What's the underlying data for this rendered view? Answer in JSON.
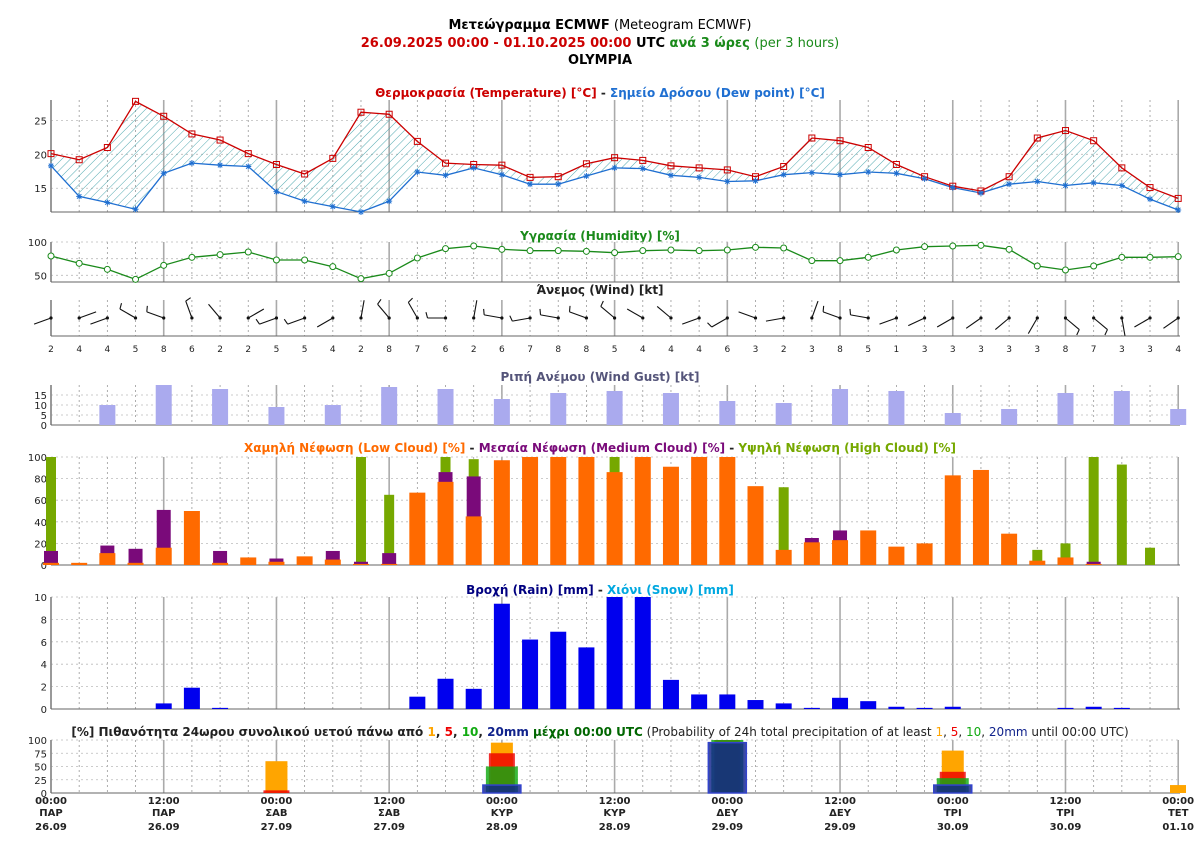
{
  "header": {
    "title_gr": "Μετεώγραμμα ECMWF",
    "title_en": "(Meteogram ECMWF)",
    "period": "26.09.2025 00:00 - 01.10.2025 00:00",
    "utc": "UTC",
    "step_gr": "ανά 3 ώρες",
    "step_en": "(per 3 hours)",
    "location": "OLYMPIA"
  },
  "colors": {
    "temperature": "#cc0000",
    "dewpoint": "#1f6fd1",
    "humidity": "#1a8a1a",
    "gust": "#aaaaee",
    "low_cloud": "#ff6a00",
    "medium_cloud": "#7a0a7a",
    "high_cloud": "#76a800",
    "rain": "#0000ee",
    "snow": "#00a8e0",
    "prob1": "#ffa500",
    "prob5": "#ee0000",
    "prob10": "#11aa11",
    "prob20": "#11238c"
  },
  "chart_data": [
    {
      "type": "line",
      "title": "Θερμοκρασία (Temperature) [°C] - Σημείο Δρόσου (Dew point) [°C]",
      "title_parts": [
        "Θερμοκρασία (Temperature) [°C]",
        " - ",
        "Σημείο Δρόσου (Dew point) [°C]"
      ],
      "y_ticks": [
        "15",
        "20",
        "25"
      ],
      "ylim": [
        11.5,
        28
      ],
      "grid": true,
      "series": [
        {
          "name": "Θερμοκρασία (Temperature) [°C]",
          "values": [
            20.1,
            19.2,
            21,
            27.8,
            25.6,
            23,
            22.1,
            20.1,
            18.5,
            17.1,
            19.4,
            26.2,
            25.9,
            21.9,
            18.7,
            18.5,
            18.4,
            16.6,
            16.7,
            18.6,
            19.5,
            19.1,
            18.3,
            18,
            17.7,
            16.7,
            18.2,
            22.4,
            22,
            21,
            18.5,
            16.7,
            15.3,
            14.6,
            16.7,
            22.4,
            23.5,
            22,
            18,
            15.1,
            13.5
          ]
        },
        {
          "name": "Σημείο Δρόσου (Dew point) [°C]",
          "values": [
            18.3,
            13.8,
            12.9,
            11.9,
            17.2,
            18.7,
            18.4,
            18.2,
            14.5,
            13.1,
            12.3,
            11.5,
            13.1,
            17.4,
            16.9,
            18,
            17,
            15.6,
            15.6,
            16.8,
            18,
            17.9,
            16.9,
            16.6,
            16,
            16.1,
            17,
            17.3,
            17,
            17.4,
            17.2,
            16.4,
            15.1,
            14.3,
            15.6,
            16,
            15.4,
            15.8,
            15.4,
            13.4,
            11.8
          ]
        }
      ]
    },
    {
      "type": "line",
      "title": "Υγρασία (Humidity) [%]",
      "y_ticks": [
        "50",
        "100"
      ],
      "ylim": [
        40,
        100
      ],
      "grid": true,
      "series": [
        {
          "name": "Υγρασία (Humidity) [%]",
          "values": [
            79,
            68,
            59,
            44,
            65,
            77,
            81,
            85,
            73,
            73,
            63,
            45,
            53,
            76,
            90,
            94,
            89,
            87,
            87,
            86,
            84,
            87,
            88,
            87,
            88,
            92,
            91,
            72,
            72,
            77,
            88,
            93,
            94,
            95,
            89,
            64,
            58,
            64,
            77,
            77,
            78
          ]
        }
      ]
    },
    {
      "type": "wind",
      "title": "Άνεμος (Wind) [kt]",
      "speeds": [
        "2",
        "4",
        "4",
        "5",
        "8",
        "6",
        "2",
        "2",
        "5",
        "5",
        "4",
        "2",
        "8",
        "7",
        "6",
        "2",
        "6",
        "7",
        "8",
        "8",
        "5",
        "4",
        "4",
        "4",
        "6",
        "3",
        "2",
        "3",
        "8",
        "5",
        "1",
        "3",
        "3",
        "3",
        "3",
        "3",
        "8",
        "7",
        "3",
        "3",
        "4"
      ],
      "directions_deg": [
        250,
        70,
        250,
        300,
        290,
        340,
        320,
        60,
        250,
        250,
        240,
        10,
        320,
        330,
        270,
        10,
        280,
        260,
        280,
        290,
        310,
        300,
        310,
        250,
        240,
        290,
        260,
        20,
        290,
        280,
        250,
        245,
        240,
        235,
        230,
        210,
        130,
        130,
        170,
        240,
        235
      ]
    },
    {
      "type": "bar",
      "title": "Ριπή Ανέμου (Wind Gust) [kt]",
      "y_ticks": [
        "0",
        "5",
        "10",
        "15"
      ],
      "ylim": [
        0,
        20
      ],
      "grid": true,
      "values": [
        10,
        20,
        18,
        9,
        10,
        19,
        18,
        13,
        16,
        17,
        16,
        12,
        11,
        18,
        17,
        6,
        8,
        16,
        17,
        8
      ]
    },
    {
      "type": "bar",
      "title": "Χαμηλή Νέφωση (Low Cloud) [%] - Μεσαία Νέφωση (Medium Cloud) [%] - Υψηλή Νέφωση (High Cloud) [%]",
      "title_parts": [
        "Χαμηλή Νέφωση (Low Cloud) [%]",
        " - ",
        "Μεσαία Νέφωση (Medium Cloud) [%]",
        " - ",
        "Υψηλή Νέφωση (High Cloud) [%]"
      ],
      "y_ticks": [
        "0",
        "20",
        "40",
        "60",
        "80",
        "100"
      ],
      "ylim": [
        0,
        100
      ],
      "grid": true,
      "series": [
        {
          "name": "Χαμηλή Νέφωση (Low Cloud) [%]",
          "values": [
            2,
            2,
            11,
            2,
            16,
            50,
            2,
            7,
            3,
            8,
            5,
            1,
            1,
            67,
            77,
            45,
            97,
            100,
            100,
            100,
            86,
            100,
            91,
            100,
            100,
            73,
            14,
            21,
            23,
            32,
            17,
            20,
            83,
            88,
            29,
            4,
            7,
            1,
            0,
            0,
            0
          ]
        },
        {
          "name": "Μεσαία Νέφωση (Medium Cloud) [%]",
          "values": [
            13,
            0,
            18,
            15,
            51,
            0,
            13,
            0,
            6,
            0,
            13,
            3,
            11,
            0,
            86,
            82,
            0,
            0,
            0,
            0,
            0,
            0,
            0,
            0,
            0,
            0,
            0,
            25,
            32,
            0,
            0,
            0,
            0,
            0,
            0,
            0,
            0,
            3,
            0,
            0,
            0
          ]
        },
        {
          "name": "Υψηλή Νέφωση (High Cloud) [%]",
          "values": [
            100,
            0,
            0,
            0,
            0,
            0,
            0,
            0,
            0,
            0,
            0,
            100,
            65,
            0,
            100,
            98,
            0,
            0,
            0,
            0,
            100,
            0,
            0,
            0,
            0,
            0,
            72,
            0,
            0,
            0,
            0,
            0,
            0,
            0,
            0,
            14,
            20,
            100,
            93,
            16,
            0
          ]
        }
      ]
    },
    {
      "type": "bar",
      "title": "Βροχή (Rain) [mm] - Χιόνι (Snow) [mm]",
      "title_parts": [
        "Βροχή (Rain) [mm]",
        " - ",
        "Χιόνι (Snow) [mm]"
      ],
      "y_ticks": [
        "0",
        "2",
        "4",
        "6",
        "8",
        "10"
      ],
      "ylim": [
        0,
        10
      ],
      "grid": true,
      "series": [
        {
          "name": "Βροχή (Rain) [mm]",
          "values": [
            0,
            0,
            0,
            0,
            0.5,
            1.9,
            0.1,
            0,
            0,
            0,
            0,
            0,
            0,
            1.1,
            2.7,
            1.8,
            9.4,
            6.2,
            6.9,
            5.5,
            10,
            10,
            2.6,
            1.3,
            1.3,
            0.8,
            0.5,
            0.1,
            1,
            0.7,
            0.2,
            0.1,
            0.2,
            0,
            0,
            0,
            0.1,
            0.2,
            0.1,
            0,
            0
          ]
        },
        {
          "name": "Χιόνι (Snow) [mm]",
          "values": [
            0,
            0,
            0,
            0,
            0,
            0,
            0,
            0,
            0,
            0,
            0,
            0,
            0,
            0,
            0,
            0,
            0,
            0,
            0,
            0,
            0,
            0,
            0,
            0,
            0,
            0,
            0,
            0,
            0,
            0,
            0,
            0,
            0,
            0,
            0,
            0,
            0,
            0,
            0,
            0,
            0
          ]
        }
      ]
    },
    {
      "type": "bar",
      "title_parts": [
        "[%] Πιθανότητα 24ωρου συνολικού υετού πάνω από ",
        "1",
        ", ",
        "5",
        ", ",
        "10",
        ", ",
        "20mm",
        " μέχρι 00:00 UTC",
        " (Probability of 24h total precipitation of at least ",
        "1",
        ", ",
        "5",
        ", ",
        "10",
        ", ",
        "20mm",
        " until 00:00 UTC)"
      ],
      "y_ticks": [
        "0",
        "25",
        "50",
        "75",
        "100"
      ],
      "ylim": [
        0,
        100
      ],
      "grid": true,
      "thresholds": [
        "1",
        "5",
        "10",
        "20mm"
      ],
      "dates": [
        "27.09",
        "28.09",
        "29.09",
        "30.09",
        "01.10"
      ],
      "values": [
        [
          60,
          5,
          0,
          0
        ],
        [
          95,
          75,
          50,
          15
        ],
        [
          100,
          100,
          100,
          95
        ],
        [
          80,
          40,
          28,
          15
        ],
        [
          15,
          0,
          0,
          0
        ]
      ]
    }
  ],
  "x_axis": {
    "labels": [
      {
        "time": "00:00",
        "day": "ΠΑΡ",
        "date": "26.09"
      },
      {
        "time": "12:00",
        "day": "ΠΑΡ",
        "date": "26.09"
      },
      {
        "time": "00:00",
        "day": "ΣΑΒ",
        "date": "27.09"
      },
      {
        "time": "12:00",
        "day": "ΣΑΒ",
        "date": "27.09"
      },
      {
        "time": "00:00",
        "day": "ΚΥΡ",
        "date": "28.09"
      },
      {
        "time": "12:00",
        "day": "ΚΥΡ",
        "date": "28.09"
      },
      {
        "time": "00:00",
        "day": "ΔΕΥ",
        "date": "29.09"
      },
      {
        "time": "12:00",
        "day": "ΔΕΥ",
        "date": "29.09"
      },
      {
        "time": "00:00",
        "day": "ΤΡΙ",
        "date": "30.09"
      },
      {
        "time": "12:00",
        "day": "ΤΡΙ",
        "date": "30.09"
      },
      {
        "time": "00:00",
        "day": "ΤΕΤ",
        "date": "01.10"
      }
    ]
  }
}
